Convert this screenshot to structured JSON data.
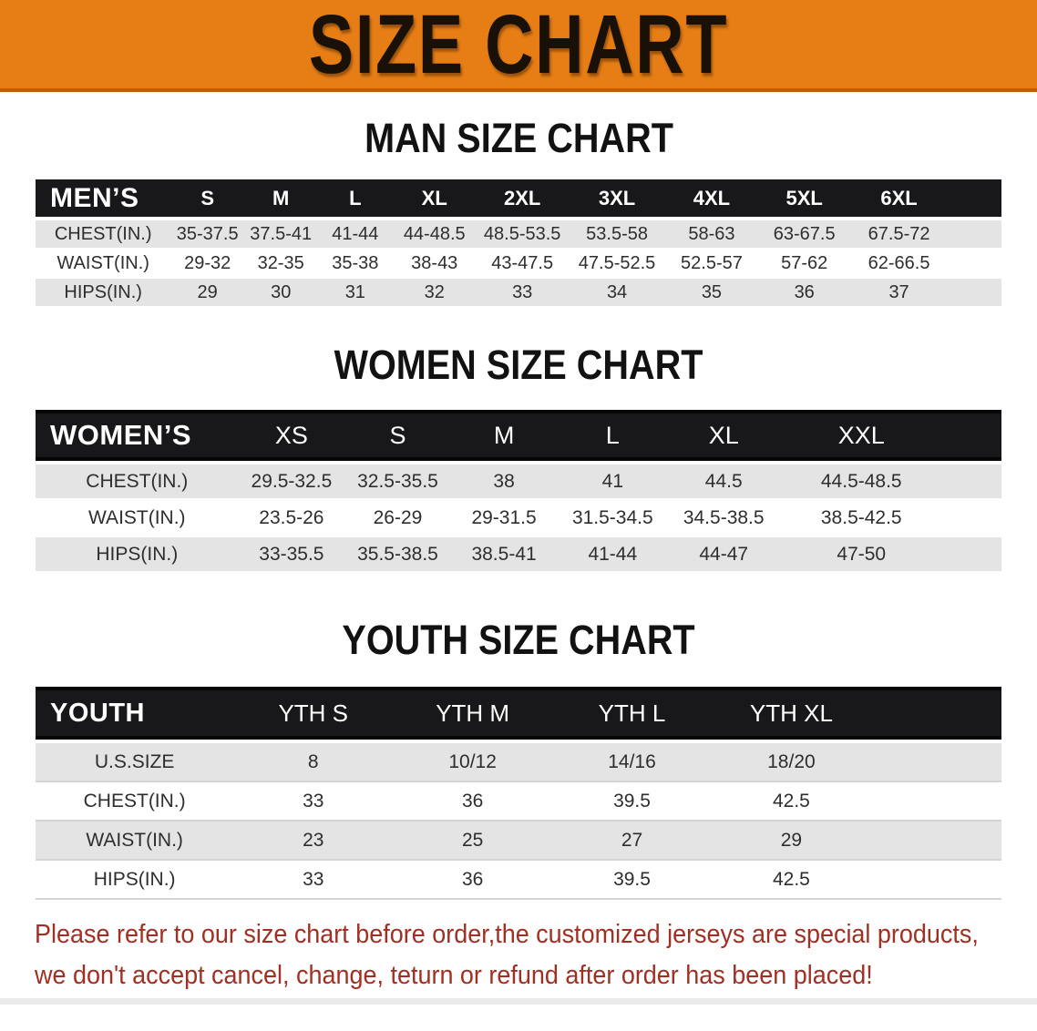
{
  "banner": {
    "title": "SIZE CHART"
  },
  "sections": [
    {
      "heading": "MAN SIZE CHART",
      "table": {
        "corner": "MEN’S",
        "sizes": [
          "S",
          "M",
          "L",
          "XL",
          "2XL",
          "3XL",
          "4XL",
          "5XL",
          "6XL"
        ],
        "rows": [
          {
            "label": "CHEST(IN.)",
            "values": [
              "35-37.5",
              "37.5-41",
              "41-44",
              "44-48.5",
              "48.5-53.5",
              "53.5-58",
              "58-63",
              "63-67.5",
              "67.5-72"
            ]
          },
          {
            "label": "WAIST(IN.)",
            "values": [
              "29-32",
              "32-35",
              "35-38",
              "38-43",
              "43-47.5",
              "47.5-52.5",
              "52.5-57",
              "57-62",
              "62-66.5"
            ]
          },
          {
            "label": "HIPS(IN.)",
            "values": [
              "29",
              "30",
              "31",
              "32",
              "33",
              "34",
              "35",
              "36",
              "37"
            ]
          }
        ]
      }
    },
    {
      "heading": "WOMEN SIZE CHART",
      "table": {
        "corner": "WOMEN’S",
        "sizes": [
          "XS",
          "S",
          "M",
          "L",
          "XL",
          "XXL"
        ],
        "rows": [
          {
            "label": "CHEST(IN.)",
            "values": [
              "29.5-32.5",
              "32.5-35.5",
              "38",
              "41",
              "44.5",
              "44.5-48.5"
            ]
          },
          {
            "label": "WAIST(IN.)",
            "values": [
              "23.5-26",
              "26-29",
              "29-31.5",
              "31.5-34.5",
              "34.5-38.5",
              "38.5-42.5"
            ]
          },
          {
            "label": "HIPS(IN.)",
            "values": [
              "33-35.5",
              "35.5-38.5",
              "38.5-41",
              "41-44",
              "44-47",
              "47-50"
            ]
          }
        ]
      }
    },
    {
      "heading": "YOUTH SIZE CHART",
      "table": {
        "corner": "YOUTH",
        "sizes": [
          "YTH S",
          "YTH M",
          "YTH L",
          "YTH XL"
        ],
        "rows": [
          {
            "label": "U.S.SIZE",
            "values": [
              "8",
              "10/12",
              "14/16",
              "18/20"
            ]
          },
          {
            "label": "CHEST(IN.)",
            "values": [
              "33",
              "36",
              "39.5",
              "42.5"
            ]
          },
          {
            "label": "WAIST(IN.)",
            "values": [
              "23",
              "25",
              "27",
              "29"
            ]
          },
          {
            "label": "HIPS(IN.)",
            "values": [
              "33",
              "36",
              "39.5",
              "42.5"
            ]
          }
        ]
      }
    }
  ],
  "footer": {
    "line1": "Please refer to our size chart before order,the customized jerseys are special products,",
    "line2": "we don't accept cancel, change, teturn or refund after order has been placed!"
  },
  "colors": {
    "banner_bg": "#e67d15",
    "banner_edge": "#b85f0c",
    "header_bar": "#18181a",
    "row_alt": "#e4e4e4",
    "footer_text": "#a02f24"
  }
}
